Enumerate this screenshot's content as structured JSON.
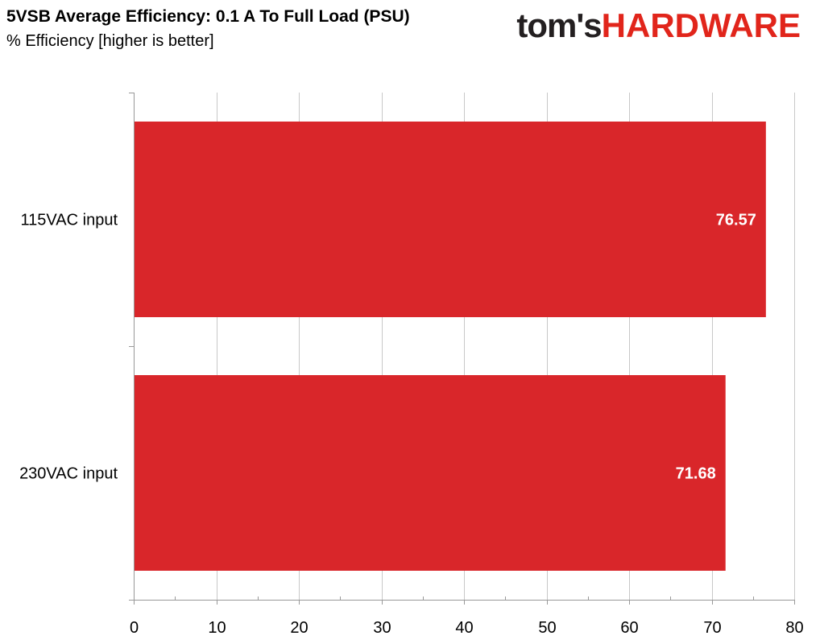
{
  "header": {
    "title": "5VSB Average Efficiency: 0.1 A To Full Load (PSU)",
    "subtitle": "% Efficiency [higher is better]"
  },
  "logo": {
    "part1": "tom's",
    "part2": "HARDWARE"
  },
  "chart_data": {
    "type": "bar",
    "orientation": "horizontal",
    "title": "5VSB Average Efficiency: 0.1 A To Full Load (PSU)",
    "subtitle": "% Efficiency [higher is better]",
    "categories": [
      "115VAC input",
      "230VAC input"
    ],
    "values": [
      76.57,
      71.68
    ],
    "data_labels": [
      "76.57",
      "71.68"
    ],
    "xlim": [
      0,
      80
    ],
    "xticks": [
      0,
      10,
      20,
      30,
      40,
      50,
      60,
      70,
      80
    ],
    "grid": "vertical",
    "bar_color": "#d9262a",
    "legend": "none"
  }
}
